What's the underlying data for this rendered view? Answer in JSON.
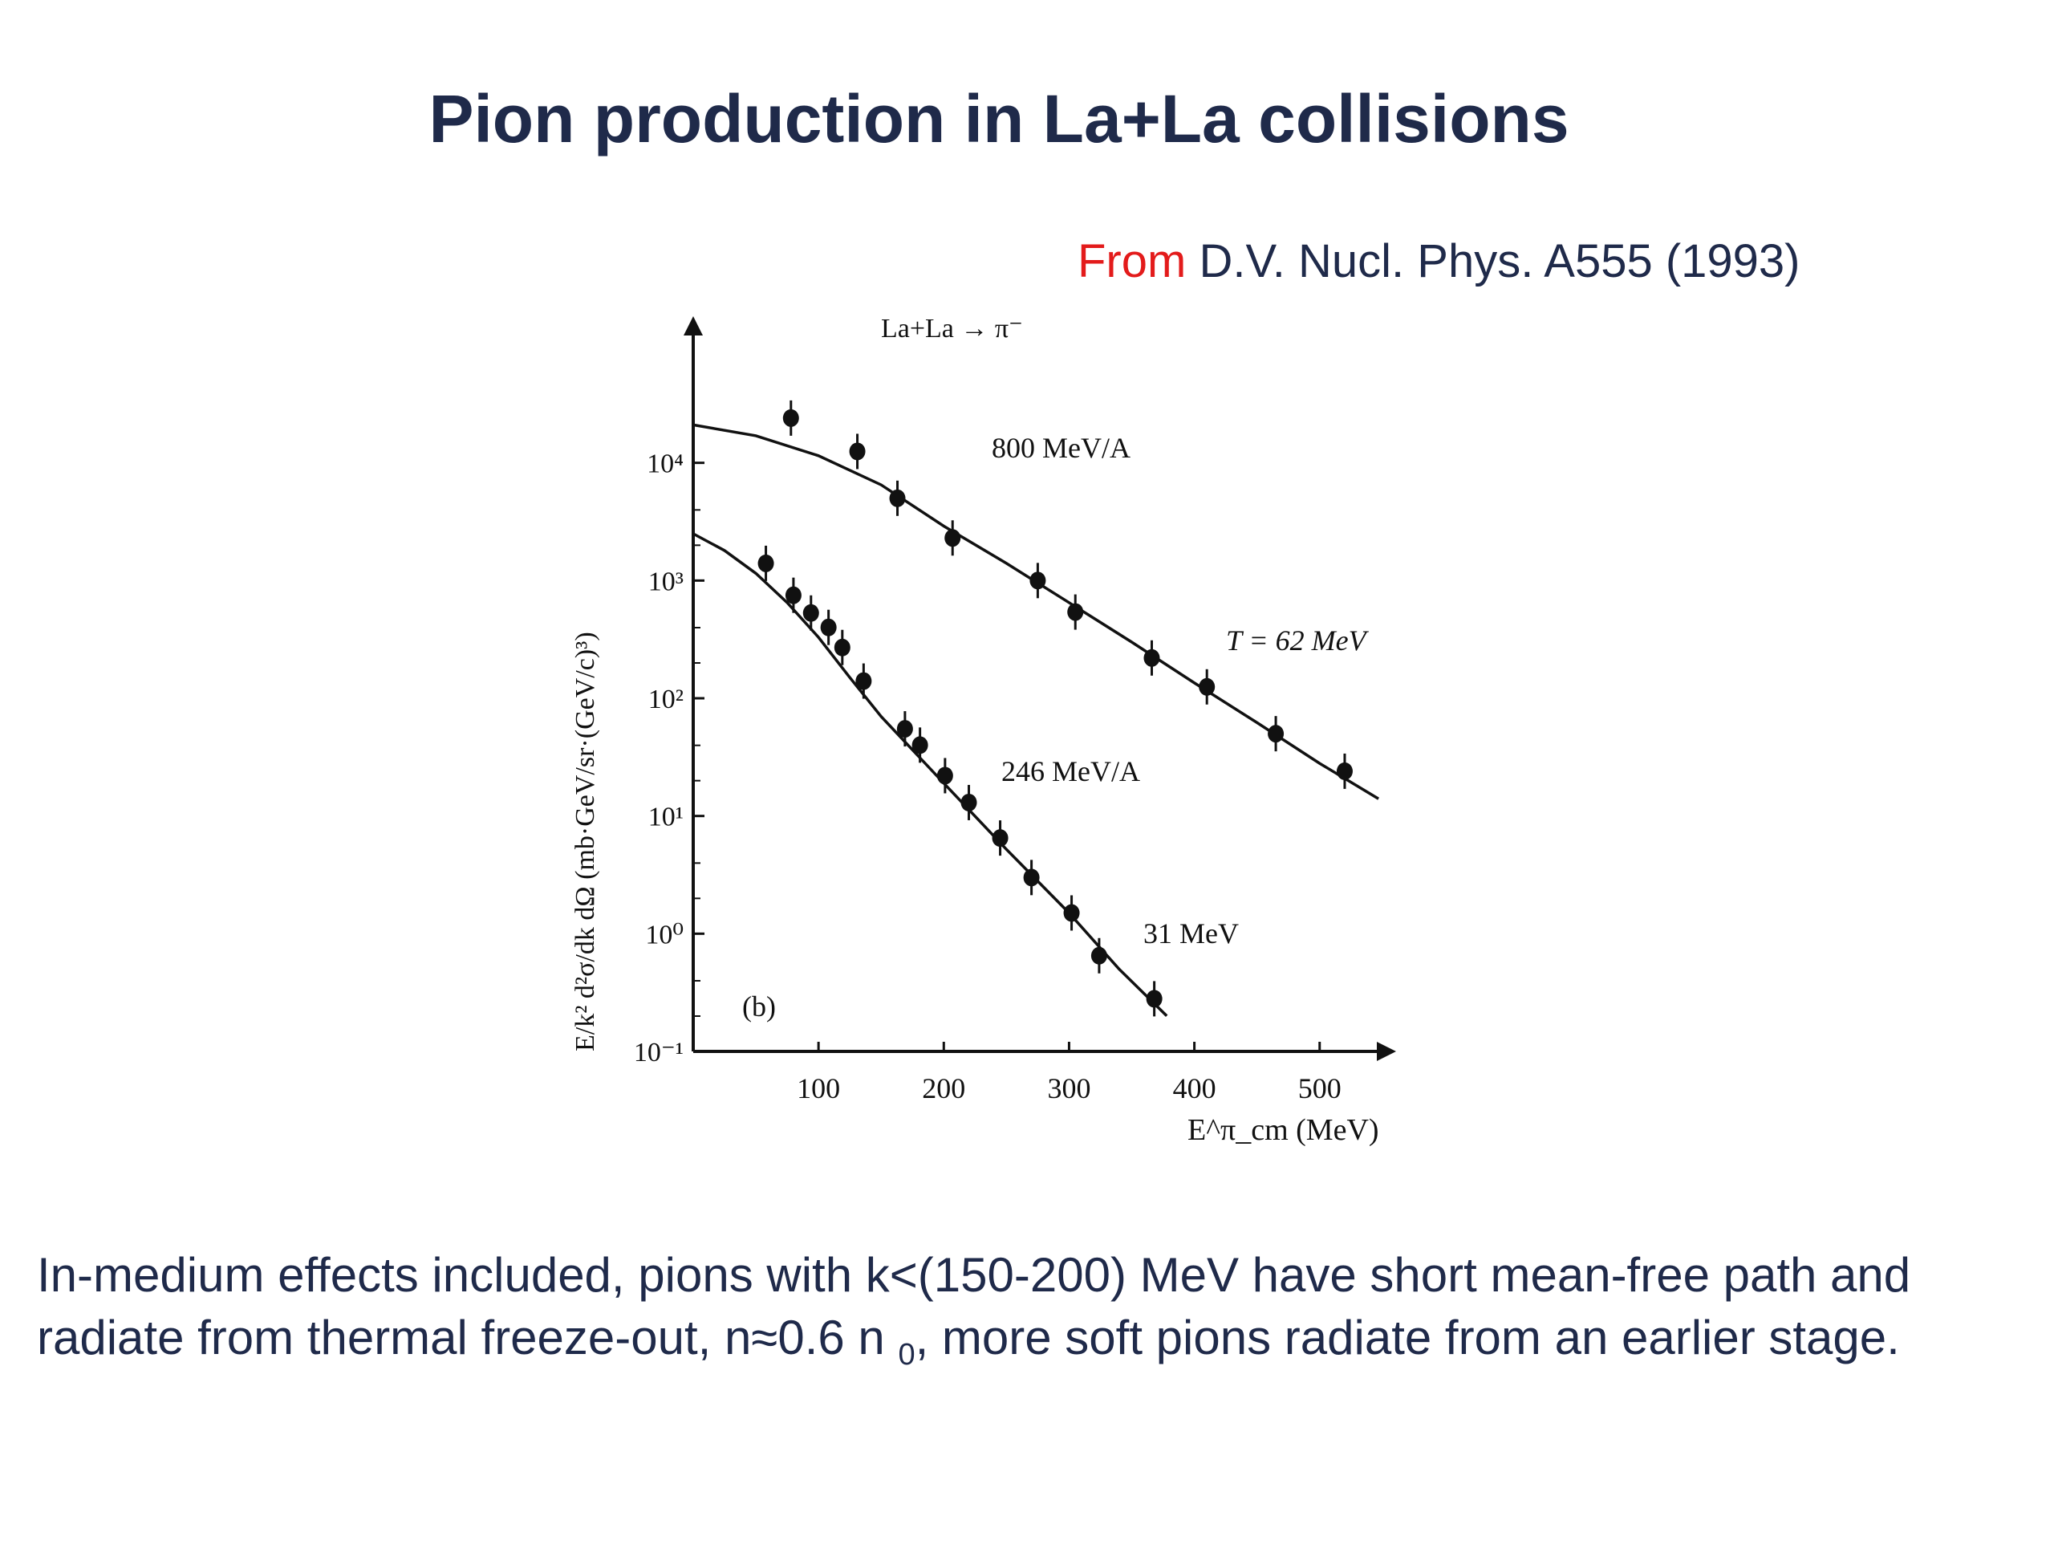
{
  "slide": {
    "title": "Pion production in La+La collisions",
    "source_from": "From",
    "source_ref": " D.V. Nucl. Phys. A555 (1993)",
    "caption_line1": "In-medium effects included, pions with k<(150-200) MeV have short mean-free path and",
    "caption_line2_a": "radiate from thermal freeze-out,  n≈0.6 n ",
    "caption_sub": "0",
    "caption_line2_b": ", more soft pions radiate from an earlier stage."
  },
  "colors": {
    "title": "#1f2a4a",
    "accent": "#e31b1b",
    "ink": "#111111"
  },
  "chart_data": {
    "type": "scatter",
    "title": "La+La → π⁻",
    "panel_label": "(b)",
    "xlabel": "E^π_cm (MeV)",
    "ylabel": "E/k² d²σ/dk dΩ (mb·GeV/sr·(GeV/c)³)",
    "x_ticks": [
      100,
      200,
      300,
      400,
      500
    ],
    "y_ticks": [
      {
        "value": -1,
        "label": "10⁻¹"
      },
      {
        "value": 0,
        "label": "10⁰"
      },
      {
        "value": 1,
        "label": "10¹"
      },
      {
        "value": 2,
        "label": "10²"
      },
      {
        "value": 3,
        "label": "10³"
      },
      {
        "value": 4,
        "label": "10⁴"
      }
    ],
    "xlim": [
      0,
      545
    ],
    "ylog": true,
    "ylim_log10": [
      -1,
      5.0
    ],
    "series": [
      {
        "name": "800 MeV/A",
        "fit_label": "T = 62 MeV",
        "points": [
          {
            "x": 78,
            "y": 24000
          },
          {
            "x": 131,
            "y": 12500
          },
          {
            "x": 163,
            "y": 5000
          },
          {
            "x": 207,
            "y": 2300
          },
          {
            "x": 275,
            "y": 1000
          },
          {
            "x": 305,
            "y": 540
          },
          {
            "x": 366,
            "y": 220
          },
          {
            "x": 410,
            "y": 125
          },
          {
            "x": 465,
            "y": 50
          },
          {
            "x": 520,
            "y": 24
          }
        ],
        "fit": [
          {
            "x": 0,
            "y": 21000
          },
          {
            "x": 50,
            "y": 17000
          },
          {
            "x": 100,
            "y": 11500
          },
          {
            "x": 150,
            "y": 6500
          },
          {
            "x": 200,
            "y": 2900
          },
          {
            "x": 250,
            "y": 1400
          },
          {
            "x": 300,
            "y": 650
          },
          {
            "x": 350,
            "y": 300
          },
          {
            "x": 400,
            "y": 135
          },
          {
            "x": 450,
            "y": 62
          },
          {
            "x": 500,
            "y": 28
          },
          {
            "x": 547,
            "y": 14
          }
        ]
      },
      {
        "name": "246 MeV/A",
        "fit_label": "31 MeV",
        "points": [
          {
            "x": 58,
            "y": 1400
          },
          {
            "x": 80,
            "y": 750
          },
          {
            "x": 94,
            "y": 530
          },
          {
            "x": 108,
            "y": 400
          },
          {
            "x": 119,
            "y": 270
          },
          {
            "x": 136,
            "y": 140
          },
          {
            "x": 169,
            "y": 55
          },
          {
            "x": 181,
            "y": 40
          },
          {
            "x": 201,
            "y": 22
          },
          {
            "x": 220,
            "y": 13
          },
          {
            "x": 245,
            "y": 6.5
          },
          {
            "x": 270,
            "y": 3.0
          },
          {
            "x": 302,
            "y": 1.5
          },
          {
            "x": 324,
            "y": 0.65
          },
          {
            "x": 368,
            "y": 0.28
          }
        ],
        "fit": [
          {
            "x": 0,
            "y": 2500
          },
          {
            "x": 25,
            "y": 1800
          },
          {
            "x": 50,
            "y": 1150
          },
          {
            "x": 75,
            "y": 650
          },
          {
            "x": 100,
            "y": 330
          },
          {
            "x": 125,
            "y": 150
          },
          {
            "x": 150,
            "y": 70
          },
          {
            "x": 200,
            "y": 19
          },
          {
            "x": 250,
            "y": 5.2
          },
          {
            "x": 300,
            "y": 1.5
          },
          {
            "x": 340,
            "y": 0.5
          },
          {
            "x": 378,
            "y": 0.2
          }
        ]
      }
    ]
  }
}
